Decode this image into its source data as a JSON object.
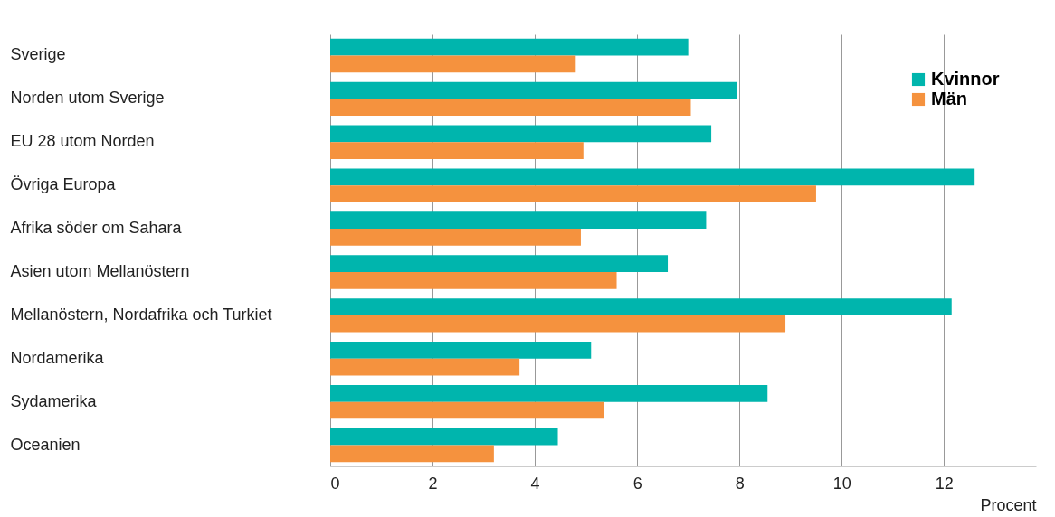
{
  "chart_data": {
    "type": "bar",
    "orientation": "horizontal",
    "xlabel": "Procent",
    "categories": [
      "Sverige",
      "Norden utom Sverige",
      "EU 28 utom Norden",
      "Övriga Europa",
      "Afrika söder om Sahara",
      "Asien utom Mellanöstern",
      "Mellanöstern, Nordafrika och Turkiet",
      "Nordamerika",
      "Sydamerika",
      "Oceanien"
    ],
    "series": [
      {
        "name": "Kvinnor",
        "color": "#00b5ad",
        "values": [
          7.0,
          7.95,
          7.45,
          12.6,
          7.35,
          6.6,
          12.15,
          5.1,
          8.55,
          4.45
        ]
      },
      {
        "name": "Män",
        "color": "#f5923e",
        "values": [
          4.8,
          7.05,
          4.95,
          9.5,
          4.9,
          5.6,
          8.9,
          3.7,
          5.35,
          3.2
        ]
      }
    ],
    "xlim": [
      0,
      13.8
    ],
    "xticks": [
      0,
      2,
      4,
      6,
      8,
      10,
      12
    ],
    "grid": "x",
    "legend": "top right"
  }
}
